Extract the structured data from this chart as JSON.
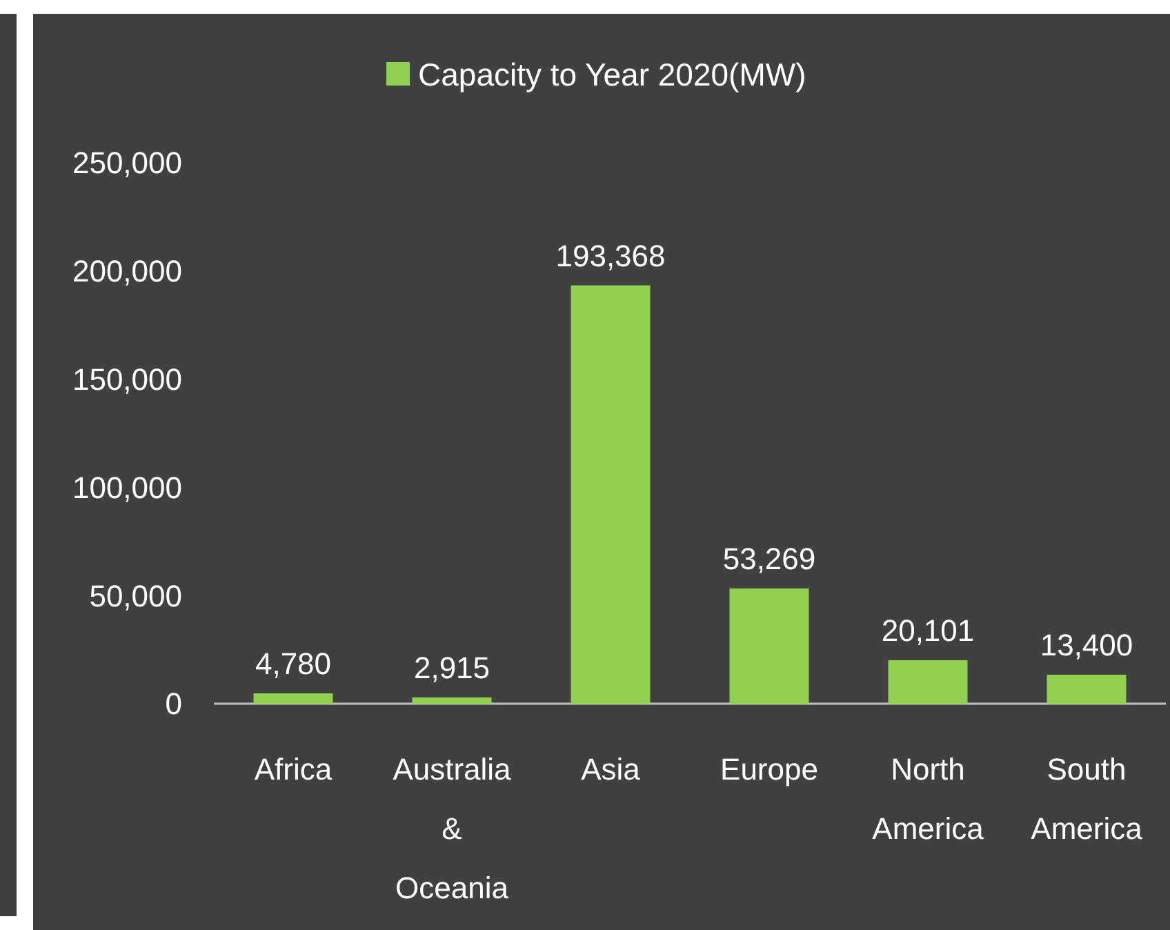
{
  "chart_data": {
    "type": "bar",
    "categories": [
      "Africa",
      "Australia & Oceania",
      "Asia",
      "Europe",
      "North America",
      "South America"
    ],
    "series": [
      {
        "name": "Capacity to Year 2020(MW)",
        "color": "#92d050",
        "values": [
          4780,
          2915,
          193368,
          53269,
          20101,
          13400
        ],
        "value_labels": [
          "4,780",
          "2,915",
          "193,368",
          "53,269",
          "20,101",
          "13,400"
        ]
      }
    ],
    "ylim": [
      0,
      250000
    ],
    "yticks": [
      {
        "value": 0,
        "label": "0"
      },
      {
        "value": 50000,
        "label": "50,000"
      },
      {
        "value": 100000,
        "label": "100,000"
      },
      {
        "value": 150000,
        "label": "150,000"
      },
      {
        "value": 200000,
        "label": "200,000"
      },
      {
        "value": 250000,
        "label": "250,000"
      }
    ],
    "legend": "top",
    "grid": false
  }
}
